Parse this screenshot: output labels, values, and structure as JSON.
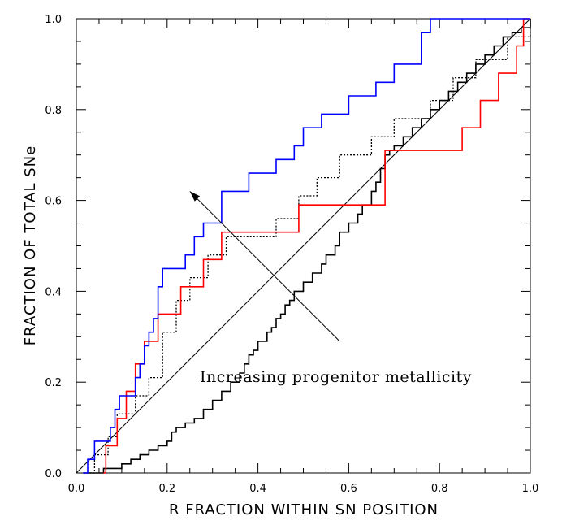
{
  "chart_data": {
    "type": "line",
    "title": "",
    "xlabel": "R FRACTION WITHIN SN POSITION",
    "ylabel": "FRACTION OF TOTAL SNe",
    "xlim": [
      0.0,
      1.0
    ],
    "ylim": [
      0.0,
      1.0
    ],
    "xticks": [
      0.0,
      0.2,
      0.4,
      0.6,
      0.8,
      1.0
    ],
    "xtick_labels": [
      "0.0",
      "0.2",
      "0.4",
      "0.6",
      "0.8",
      "1.0"
    ],
    "yticks": [
      0.0,
      0.2,
      0.4,
      0.6,
      0.8,
      1.0
    ],
    "ytick_labels": [
      "0.0",
      "0.2",
      "0.4",
      "0.6",
      "0.8",
      "1.0"
    ],
    "grid": false,
    "annotation": "Increasing progenitor metallicity",
    "annotation_arrow": {
      "from": [
        0.58,
        0.29
      ],
      "to": [
        0.25,
        0.62
      ]
    },
    "colors": {
      "blue": "#0000ff",
      "red": "#ff0000",
      "black": "#000000",
      "diagonal": "#000000"
    },
    "series": [
      {
        "name": "blue",
        "color": "#0000ff",
        "x": [
          0.015,
          0.025,
          0.04,
          0.06,
          0.075,
          0.085,
          0.095,
          0.13,
          0.14,
          0.15,
          0.16,
          0.17,
          0.18,
          0.19,
          0.2,
          0.24,
          0.26,
          0.28,
          0.32,
          0.38,
          0.44,
          0.48,
          0.5,
          0.54,
          0.6,
          0.66,
          0.7,
          0.76,
          0.78
        ],
        "y": [
          0.0,
          0.03,
          0.07,
          0.07,
          0.1,
          0.14,
          0.17,
          0.21,
          0.24,
          0.28,
          0.31,
          0.34,
          0.41,
          0.45,
          0.45,
          0.48,
          0.52,
          0.55,
          0.62,
          0.66,
          0.69,
          0.72,
          0.76,
          0.79,
          0.83,
          0.86,
          0.9,
          0.97,
          1.0
        ]
      },
      {
        "name": "red",
        "color": "#ff0000",
        "x": [
          0.06,
          0.065,
          0.09,
          0.11,
          0.13,
          0.15,
          0.18,
          0.23,
          0.28,
          0.32,
          0.49,
          0.68,
          0.85,
          0.89,
          0.93,
          0.97,
          0.985
        ],
        "y": [
          0.0,
          0.06,
          0.12,
          0.18,
          0.24,
          0.29,
          0.35,
          0.41,
          0.47,
          0.53,
          0.59,
          0.71,
          0.76,
          0.82,
          0.88,
          0.94,
          1.0
        ]
      },
      {
        "name": "black-dotted",
        "color": "#000000",
        "x": [
          0.015,
          0.04,
          0.07,
          0.09,
          0.13,
          0.16,
          0.19,
          0.22,
          0.25,
          0.29,
          0.33,
          0.44,
          0.49,
          0.53,
          0.58,
          0.65,
          0.7,
          0.78,
          0.83,
          0.88,
          0.95,
          1.0
        ],
        "y": [
          0.0,
          0.04,
          0.08,
          0.13,
          0.17,
          0.21,
          0.31,
          0.38,
          0.43,
          0.48,
          0.52,
          0.56,
          0.61,
          0.65,
          0.7,
          0.74,
          0.78,
          0.82,
          0.87,
          0.91,
          0.96,
          1.0
        ]
      },
      {
        "name": "black-solid",
        "color": "#000000",
        "x": [
          0.015,
          0.06,
          0.1,
          0.12,
          0.14,
          0.16,
          0.18,
          0.2,
          0.21,
          0.22,
          0.24,
          0.26,
          0.28,
          0.3,
          0.32,
          0.34,
          0.36,
          0.37,
          0.38,
          0.39,
          0.4,
          0.42,
          0.43,
          0.44,
          0.45,
          0.46,
          0.47,
          0.48,
          0.5,
          0.52,
          0.54,
          0.55,
          0.57,
          0.58,
          0.6,
          0.62,
          0.63,
          0.65,
          0.66,
          0.67,
          0.68,
          0.69,
          0.7,
          0.72,
          0.74,
          0.76,
          0.78,
          0.8,
          0.82,
          0.84,
          0.86,
          0.88,
          0.9,
          0.92,
          0.94,
          0.96,
          0.98,
          1.0
        ],
        "y": [
          0.0,
          0.01,
          0.02,
          0.03,
          0.04,
          0.05,
          0.06,
          0.07,
          0.09,
          0.1,
          0.11,
          0.12,
          0.14,
          0.16,
          0.18,
          0.2,
          0.22,
          0.24,
          0.26,
          0.27,
          0.29,
          0.31,
          0.32,
          0.34,
          0.35,
          0.37,
          0.38,
          0.4,
          0.42,
          0.44,
          0.46,
          0.48,
          0.5,
          0.53,
          0.55,
          0.57,
          0.59,
          0.62,
          0.64,
          0.67,
          0.7,
          0.71,
          0.72,
          0.74,
          0.76,
          0.78,
          0.8,
          0.82,
          0.84,
          0.86,
          0.88,
          0.9,
          0.92,
          0.94,
          0.96,
          0.97,
          0.98,
          1.0
        ]
      }
    ]
  }
}
